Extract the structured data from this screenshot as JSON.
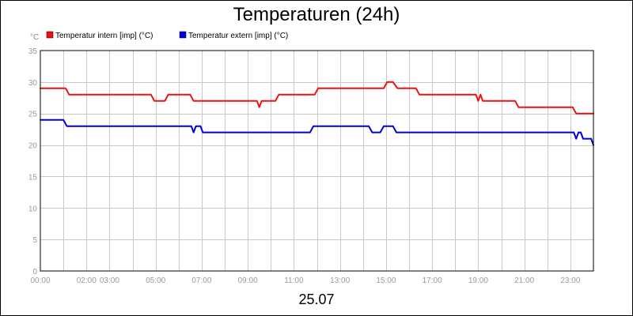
{
  "chart_data": {
    "type": "line",
    "title": "Temperaturen (24h)",
    "unit_label": "°C",
    "date_label": "25.07",
    "xlim": [
      0,
      24
    ],
    "ylim": [
      0,
      35
    ],
    "y_ticks": [
      0,
      5,
      10,
      15,
      20,
      25,
      30,
      35
    ],
    "x_ticks": [
      {
        "h": 0,
        "label": "00:00"
      },
      {
        "h": 1,
        "label": ""
      },
      {
        "h": 2,
        "label": "02:00"
      },
      {
        "h": 3,
        "label": "03:00"
      },
      {
        "h": 4,
        "label": ""
      },
      {
        "h": 5,
        "label": "05:00"
      },
      {
        "h": 6,
        "label": ""
      },
      {
        "h": 7,
        "label": "07:00"
      },
      {
        "h": 8,
        "label": ""
      },
      {
        "h": 9,
        "label": "09:00"
      },
      {
        "h": 10,
        "label": ""
      },
      {
        "h": 11,
        "label": "11:00"
      },
      {
        "h": 12,
        "label": ""
      },
      {
        "h": 13,
        "label": "13:00"
      },
      {
        "h": 14,
        "label": ""
      },
      {
        "h": 15,
        "label": "15:00"
      },
      {
        "h": 16,
        "label": ""
      },
      {
        "h": 17,
        "label": "17:00"
      },
      {
        "h": 18,
        "label": ""
      },
      {
        "h": 19,
        "label": "19:00"
      },
      {
        "h": 20,
        "label": ""
      },
      {
        "h": 21,
        "label": "21:00"
      },
      {
        "h": 22,
        "label": ""
      },
      {
        "h": 23,
        "label": "23:00"
      },
      {
        "h": 24,
        "label": ""
      }
    ],
    "grid": true,
    "legend_position": "top-left",
    "series": [
      {
        "name": "Temperatur intern [imp] (°C)",
        "color": "#ee1111",
        "points": [
          [
            0,
            29
          ],
          [
            1.1,
            29
          ],
          [
            1.25,
            28
          ],
          [
            4.8,
            28
          ],
          [
            4.95,
            27
          ],
          [
            5.4,
            27
          ],
          [
            5.55,
            28
          ],
          [
            6.5,
            28
          ],
          [
            6.65,
            27
          ],
          [
            9.4,
            27
          ],
          [
            9.5,
            26
          ],
          [
            9.6,
            27
          ],
          [
            10.2,
            27
          ],
          [
            10.35,
            28
          ],
          [
            11.9,
            28
          ],
          [
            12.05,
            29
          ],
          [
            14.9,
            29
          ],
          [
            15.05,
            30
          ],
          [
            15.3,
            30
          ],
          [
            15.5,
            29
          ],
          [
            16.3,
            29
          ],
          [
            16.45,
            28
          ],
          [
            18.9,
            28
          ],
          [
            19.0,
            27
          ],
          [
            19.1,
            28
          ],
          [
            19.2,
            27
          ],
          [
            20.6,
            27
          ],
          [
            20.75,
            26
          ],
          [
            23.1,
            26
          ],
          [
            23.25,
            25
          ],
          [
            24,
            25
          ]
        ]
      },
      {
        "name": "Temperatur extern [imp] (°C)",
        "color": "#0000dd",
        "points": [
          [
            0,
            24
          ],
          [
            1.0,
            24
          ],
          [
            1.15,
            23
          ],
          [
            6.55,
            23
          ],
          [
            6.65,
            22
          ],
          [
            6.75,
            23
          ],
          [
            6.95,
            23
          ],
          [
            7.05,
            22
          ],
          [
            11.7,
            22
          ],
          [
            11.85,
            23
          ],
          [
            14.25,
            23
          ],
          [
            14.4,
            22
          ],
          [
            14.75,
            22
          ],
          [
            14.9,
            23
          ],
          [
            15.3,
            23
          ],
          [
            15.45,
            22
          ],
          [
            23.15,
            22
          ],
          [
            23.25,
            21
          ],
          [
            23.35,
            22
          ],
          [
            23.45,
            22
          ],
          [
            23.55,
            21
          ],
          [
            23.9,
            21
          ],
          [
            24,
            20
          ]
        ]
      }
    ]
  }
}
